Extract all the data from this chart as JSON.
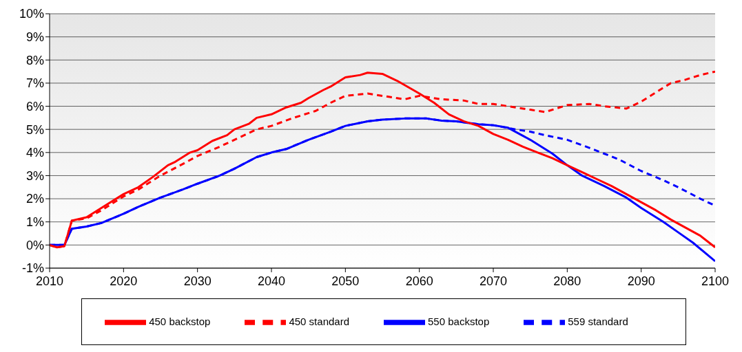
{
  "chart_data": {
    "type": "line",
    "xlim": [
      2010,
      2100
    ],
    "xticks": [
      2010,
      2020,
      2030,
      2040,
      2050,
      2060,
      2070,
      2080,
      2090,
      2100
    ],
    "ylim": [
      -1,
      10
    ],
    "yticks": [
      {
        "value": -1,
        "label": "-1%"
      },
      {
        "value": 0,
        "label": "0%"
      },
      {
        "value": 1,
        "label": "1%"
      },
      {
        "value": 2,
        "label": "2%"
      },
      {
        "value": 3,
        "label": "3%"
      },
      {
        "value": 4,
        "label": "4%"
      },
      {
        "value": 5,
        "label": "5%"
      },
      {
        "value": 6,
        "label": "6%"
      },
      {
        "value": 7,
        "label": "7%"
      },
      {
        "value": 8,
        "label": "8%"
      },
      {
        "value": 9,
        "label": "9%"
      },
      {
        "value": 10,
        "label": "10%"
      }
    ],
    "grid": "y",
    "legend": "bottom",
    "marker": "none",
    "series": [
      {
        "name": "559 standard",
        "color": "#0000ff",
        "line_style": "dashed",
        "x": [
          2010,
          2012,
          2013,
          2015,
          2017,
          2020,
          2022,
          2025,
          2028,
          2030,
          2033,
          2035,
          2038,
          2040,
          2042,
          2045,
          2048,
          2050,
          2053,
          2055,
          2058,
          2061,
          2063,
          2065,
          2068,
          2070,
          2073,
          2075,
          2077,
          2080,
          2083,
          2085,
          2087,
          2090,
          2093,
          2095,
          2098,
          2100
        ],
        "values": [
          0,
          0,
          0.7,
          0.8,
          0.95,
          1.35,
          1.65,
          2.05,
          2.4,
          2.65,
          3.0,
          3.3,
          3.8,
          4.0,
          4.15,
          4.55,
          4.9,
          5.15,
          5.35,
          5.42,
          5.47,
          5.47,
          5.38,
          5.35,
          5.22,
          5.18,
          5.0,
          4.9,
          4.75,
          4.55,
          4.2,
          3.95,
          3.7,
          3.2,
          2.8,
          2.5,
          2.0,
          1.7
        ]
      },
      {
        "name": "450 standard",
        "color": "#ff0000",
        "line_style": "dashed",
        "x": [
          2010,
          2011,
          2012,
          2013,
          2015,
          2017,
          2020,
          2022,
          2025,
          2028,
          2030,
          2033,
          2035,
          2038,
          2040,
          2043,
          2046,
          2048,
          2050,
          2053,
          2055,
          2058,
          2060,
          2063,
          2066,
          2068,
          2070,
          2073,
          2075,
          2077,
          2080,
          2083,
          2085,
          2088,
          2090,
          2092,
          2094,
          2096,
          2098,
          2100
        ],
        "values": [
          0,
          -0.1,
          -0.05,
          1.05,
          1.15,
          1.5,
          2.1,
          2.4,
          3.0,
          3.5,
          3.85,
          4.25,
          4.55,
          5.0,
          5.15,
          5.5,
          5.8,
          6.15,
          6.45,
          6.55,
          6.45,
          6.3,
          6.45,
          6.3,
          6.25,
          6.1,
          6.1,
          5.95,
          5.85,
          5.75,
          6.05,
          6.1,
          6.0,
          5.9,
          6.2,
          6.6,
          7.0,
          7.15,
          7.35,
          7.5
        ]
      },
      {
        "name": "550 backstop",
        "color": "#0000ff",
        "line_style": "solid",
        "x": [
          2010,
          2012,
          2013,
          2015,
          2017,
          2020,
          2022,
          2025,
          2028,
          2030,
          2033,
          2035,
          2038,
          2040,
          2042,
          2045,
          2048,
          2050,
          2053,
          2055,
          2058,
          2061,
          2063,
          2065,
          2068,
          2070,
          2072,
          2075,
          2078,
          2080,
          2082,
          2085,
          2088,
          2090,
          2093,
          2095,
          2097,
          2100
        ],
        "values": [
          0,
          0,
          0.7,
          0.8,
          0.95,
          1.35,
          1.65,
          2.05,
          2.4,
          2.65,
          3.0,
          3.3,
          3.8,
          4.0,
          4.15,
          4.55,
          4.9,
          5.15,
          5.35,
          5.42,
          5.47,
          5.47,
          5.38,
          5.35,
          5.22,
          5.18,
          5.07,
          4.55,
          3.95,
          3.45,
          3.0,
          2.55,
          2.05,
          1.6,
          1.0,
          0.55,
          0.1,
          -0.7
        ]
      },
      {
        "name": "450 backstop",
        "color": "#ff0000",
        "line_style": "solid",
        "x": [
          2010,
          2011,
          2012,
          2013,
          2015,
          2017,
          2020,
          2022,
          2024,
          2026,
          2027,
          2029,
          2030,
          2032,
          2034,
          2035,
          2037,
          2038,
          2040,
          2042,
          2044,
          2045,
          2047,
          2048,
          2050,
          2052,
          2053,
          2055,
          2057,
          2060,
          2062,
          2064,
          2066,
          2068,
          2070,
          2072,
          2074,
          2076,
          2078,
          2080,
          2082,
          2084,
          2086,
          2088,
          2090,
          2092,
          2094,
          2096,
          2098,
          2100
        ],
        "values": [
          0,
          -0.1,
          -0.05,
          1.05,
          1.2,
          1.6,
          2.2,
          2.5,
          2.95,
          3.45,
          3.6,
          4.0,
          4.1,
          4.5,
          4.75,
          5.0,
          5.25,
          5.5,
          5.65,
          5.95,
          6.15,
          6.35,
          6.7,
          6.85,
          7.25,
          7.35,
          7.45,
          7.4,
          7.1,
          6.55,
          6.15,
          5.65,
          5.35,
          5.15,
          4.8,
          4.55,
          4.25,
          4.0,
          3.75,
          3.45,
          3.15,
          2.85,
          2.55,
          2.2,
          1.85,
          1.5,
          1.1,
          0.75,
          0.4,
          -0.1
        ]
      }
    ]
  }
}
